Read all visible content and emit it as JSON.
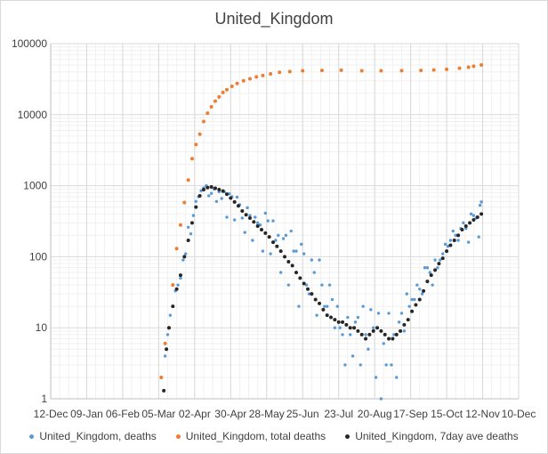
{
  "chart_data": {
    "type": "scatter",
    "title": "United_Kingdom",
    "yscale": "log",
    "ylim": [
      1,
      100000
    ],
    "y_ticks": [
      "1",
      "10",
      "100",
      "1000",
      "10000",
      "100000"
    ],
    "x_range": [
      "2019-12-12",
      "2020-12-10"
    ],
    "x_ticks": [
      "12-Dec",
      "09-Jan",
      "06-Feb",
      "05-Mar",
      "02-Apr",
      "30-Apr",
      "28-May",
      "25-Jun",
      "23-Jul",
      "20-Aug",
      "17-Sep",
      "15-Oct",
      "12-Nov",
      "10-Dec"
    ],
    "grid": true,
    "legend_position": "bottom",
    "series": [
      {
        "name": "United_Kingdom, deaths",
        "color": "#5b9bd5",
        "points": [
          [
            "2020-03-07",
            2
          ],
          [
            "2020-03-10",
            4
          ],
          [
            "2020-03-12",
            8
          ],
          [
            "2020-03-14",
            15
          ],
          [
            "2020-03-16",
            20
          ],
          [
            "2020-03-18",
            33
          ],
          [
            "2020-03-20",
            40
          ],
          [
            "2020-03-22",
            50
          ],
          [
            "2020-03-24",
            90
          ],
          [
            "2020-03-26",
            110
          ],
          [
            "2020-03-28",
            260
          ],
          [
            "2020-03-30",
            210
          ],
          [
            "2020-04-01",
            380
          ],
          [
            "2020-04-03",
            600
          ],
          [
            "2020-04-05",
            700
          ],
          [
            "2020-04-07",
            850
          ],
          [
            "2020-04-09",
            930
          ],
          [
            "2020-04-11",
            1000
          ],
          [
            "2020-04-13",
            720
          ],
          [
            "2020-04-15",
            780
          ],
          [
            "2020-04-17",
            900
          ],
          [
            "2020-04-19",
            600
          ],
          [
            "2020-04-21",
            820
          ],
          [
            "2020-04-23",
            660
          ],
          [
            "2020-04-25",
            820
          ],
          [
            "2020-04-27",
            360
          ],
          [
            "2020-04-29",
            770
          ],
          [
            "2020-05-01",
            700
          ],
          [
            "2020-05-03",
            330
          ],
          [
            "2020-05-05",
            690
          ],
          [
            "2020-05-07",
            540
          ],
          [
            "2020-05-09",
            350
          ],
          [
            "2020-05-11",
            220
          ],
          [
            "2020-05-13",
            490
          ],
          [
            "2020-05-15",
            380
          ],
          [
            "2020-05-17",
            170
          ],
          [
            "2020-05-19",
            360
          ],
          [
            "2020-05-21",
            300
          ],
          [
            "2020-05-23",
            280
          ],
          [
            "2020-05-25",
            120
          ],
          [
            "2020-05-27",
            410
          ],
          [
            "2020-05-29",
            320
          ],
          [
            "2020-05-31",
            110
          ],
          [
            "2020-06-02",
            320
          ],
          [
            "2020-06-04",
            170
          ],
          [
            "2020-06-06",
            200
          ],
          [
            "2020-06-08",
            60
          ],
          [
            "2020-06-10",
            180
          ],
          [
            "2020-06-12",
            200
          ],
          [
            "2020-06-14",
            40
          ],
          [
            "2020-06-16",
            230
          ],
          [
            "2020-06-18",
            120
          ],
          [
            "2020-06-20",
            120
          ],
          [
            "2020-06-22",
            20
          ],
          [
            "2020-06-24",
            150
          ],
          [
            "2020-06-26",
            110
          ],
          [
            "2020-06-28",
            40
          ],
          [
            "2020-06-30",
            30
          ],
          [
            "2020-07-02",
            90
          ],
          [
            "2020-07-04",
            60
          ],
          [
            "2020-07-06",
            15
          ],
          [
            "2020-07-08",
            90
          ],
          [
            "2020-07-10",
            40
          ],
          [
            "2020-07-12",
            20
          ],
          [
            "2020-07-14",
            20
          ],
          [
            "2020-07-16",
            40
          ],
          [
            "2020-07-18",
            25
          ],
          [
            "2020-07-20",
            10
          ],
          [
            "2020-07-22",
            20
          ],
          [
            "2020-07-24",
            10
          ],
          [
            "2020-07-26",
            8
          ],
          [
            "2020-07-28",
            3
          ],
          [
            "2020-07-30",
            14
          ],
          [
            "2020-08-01",
            8
          ],
          [
            "2020-08-03",
            4
          ],
          [
            "2020-08-05",
            12
          ],
          [
            "2020-08-07",
            14
          ],
          [
            "2020-08-09",
            3
          ],
          [
            "2020-08-11",
            20
          ],
          [
            "2020-08-13",
            8
          ],
          [
            "2020-08-15",
            5
          ],
          [
            "2020-08-17",
            18
          ],
          [
            "2020-08-19",
            10
          ],
          [
            "2020-08-21",
            2
          ],
          [
            "2020-08-23",
            16
          ],
          [
            "2020-08-25",
            1
          ],
          [
            "2020-08-27",
            6
          ],
          [
            "2020-08-29",
            3
          ],
          [
            "2020-08-31",
            16
          ],
          [
            "2020-09-02",
            3
          ],
          [
            "2020-09-04",
            8
          ],
          [
            "2020-09-06",
            2
          ],
          [
            "2020-09-08",
            12
          ],
          [
            "2020-09-10",
            16
          ],
          [
            "2020-09-12",
            9
          ],
          [
            "2020-09-14",
            30
          ],
          [
            "2020-09-16",
            20
          ],
          [
            "2020-09-18",
            25
          ],
          [
            "2020-09-20",
            25
          ],
          [
            "2020-09-22",
            40
          ],
          [
            "2020-09-24",
            35
          ],
          [
            "2020-09-26",
            30
          ],
          [
            "2020-09-28",
            70
          ],
          [
            "2020-09-30",
            70
          ],
          [
            "2020-10-02",
            60
          ],
          [
            "2020-10-04",
            40
          ],
          [
            "2020-10-06",
            90
          ],
          [
            "2020-10-08",
            70
          ],
          [
            "2020-10-10",
            90
          ],
          [
            "2020-10-12",
            110
          ],
          [
            "2020-10-14",
            150
          ],
          [
            "2020-10-16",
            140
          ],
          [
            "2020-10-18",
            170
          ],
          [
            "2020-10-20",
            230
          ],
          [
            "2020-10-22",
            200
          ],
          [
            "2020-10-24",
            170
          ],
          [
            "2020-10-26",
            250
          ],
          [
            "2020-10-28",
            300
          ],
          [
            "2020-10-30",
            250
          ],
          [
            "2020-11-01",
            160
          ],
          [
            "2020-11-03",
            400
          ],
          [
            "2020-11-05",
            380
          ],
          [
            "2020-11-07",
            350
          ],
          [
            "2020-11-09",
            190
          ],
          [
            "2020-11-10",
            530
          ],
          [
            "2020-11-11",
            590
          ]
        ]
      },
      {
        "name": "United_Kingdom, total deaths",
        "color": "#ed7d31",
        "points": [
          [
            "2020-03-07",
            2
          ],
          [
            "2020-03-10",
            6
          ],
          [
            "2020-03-13",
            10
          ],
          [
            "2020-03-16",
            40
          ],
          [
            "2020-03-19",
            130
          ],
          [
            "2020-03-22",
            280
          ],
          [
            "2020-03-25",
            580
          ],
          [
            "2020-03-28",
            1200
          ],
          [
            "2020-03-31",
            2400
          ],
          [
            "2020-04-03",
            3800
          ],
          [
            "2020-04-06",
            5300
          ],
          [
            "2020-04-09",
            8000
          ],
          [
            "2020-04-12",
            10500
          ],
          [
            "2020-04-15",
            12900
          ],
          [
            "2020-04-18",
            15500
          ],
          [
            "2020-04-21",
            17800
          ],
          [
            "2020-04-24",
            20500
          ],
          [
            "2020-04-27",
            22500
          ],
          [
            "2020-05-01",
            25000
          ],
          [
            "2020-05-05",
            27500
          ],
          [
            "2020-05-10",
            30000
          ],
          [
            "2020-05-15",
            32000
          ],
          [
            "2020-05-20",
            34000
          ],
          [
            "2020-05-25",
            35500
          ],
          [
            "2020-05-31",
            37500
          ],
          [
            "2020-06-07",
            39500
          ],
          [
            "2020-06-15",
            40500
          ],
          [
            "2020-06-25",
            41500
          ],
          [
            "2020-07-10",
            42000
          ],
          [
            "2020-07-25",
            42200
          ],
          [
            "2020-08-10",
            41500
          ],
          [
            "2020-08-25",
            41500
          ],
          [
            "2020-09-10",
            41600
          ],
          [
            "2020-09-25",
            42000
          ],
          [
            "2020-10-05",
            42500
          ],
          [
            "2020-10-15",
            43500
          ],
          [
            "2020-10-25",
            45000
          ],
          [
            "2020-11-01",
            46500
          ],
          [
            "2020-11-05",
            48000
          ],
          [
            "2020-11-11",
            50000
          ]
        ]
      },
      {
        "name": "United_Kingdom, 7day ave deaths",
        "color": "#262626",
        "points": [
          [
            "2020-03-09",
            1.3
          ],
          [
            "2020-03-11",
            5
          ],
          [
            "2020-03-13",
            10
          ],
          [
            "2020-03-16",
            20
          ],
          [
            "2020-03-19",
            35
          ],
          [
            "2020-03-22",
            55
          ],
          [
            "2020-03-25",
            100
          ],
          [
            "2020-03-28",
            170
          ],
          [
            "2020-03-31",
            300
          ],
          [
            "2020-04-03",
            500
          ],
          [
            "2020-04-06",
            720
          ],
          [
            "2020-04-09",
            880
          ],
          [
            "2020-04-12",
            940
          ],
          [
            "2020-04-15",
            960
          ],
          [
            "2020-04-18",
            920
          ],
          [
            "2020-04-21",
            880
          ],
          [
            "2020-04-24",
            840
          ],
          [
            "2020-04-27",
            760
          ],
          [
            "2020-04-30",
            670
          ],
          [
            "2020-05-03",
            590
          ],
          [
            "2020-05-06",
            520
          ],
          [
            "2020-05-09",
            440
          ],
          [
            "2020-05-12",
            390
          ],
          [
            "2020-05-15",
            350
          ],
          [
            "2020-05-18",
            310
          ],
          [
            "2020-05-21",
            270
          ],
          [
            "2020-05-24",
            240
          ],
          [
            "2020-05-27",
            215
          ],
          [
            "2020-05-30",
            190
          ],
          [
            "2020-06-02",
            160
          ],
          [
            "2020-06-05",
            140
          ],
          [
            "2020-06-08",
            120
          ],
          [
            "2020-06-11",
            100
          ],
          [
            "2020-06-14",
            85
          ],
          [
            "2020-06-17",
            75
          ],
          [
            "2020-06-20",
            60
          ],
          [
            "2020-06-23",
            50
          ],
          [
            "2020-06-26",
            42
          ],
          [
            "2020-06-29",
            35
          ],
          [
            "2020-07-02",
            30
          ],
          [
            "2020-07-05",
            25
          ],
          [
            "2020-07-08",
            22
          ],
          [
            "2020-07-11",
            18
          ],
          [
            "2020-07-14",
            15
          ],
          [
            "2020-07-17",
            14
          ],
          [
            "2020-07-20",
            13
          ],
          [
            "2020-07-23",
            12
          ],
          [
            "2020-07-26",
            12
          ],
          [
            "2020-07-29",
            11
          ],
          [
            "2020-08-01",
            10
          ],
          [
            "2020-08-04",
            10
          ],
          [
            "2020-08-07",
            9
          ],
          [
            "2020-08-10",
            8
          ],
          [
            "2020-08-13",
            7
          ],
          [
            "2020-08-16",
            8
          ],
          [
            "2020-08-19",
            9
          ],
          [
            "2020-08-22",
            10
          ],
          [
            "2020-08-25",
            9
          ],
          [
            "2020-08-28",
            8
          ],
          [
            "2020-08-31",
            7
          ],
          [
            "2020-09-03",
            7
          ],
          [
            "2020-09-06",
            8
          ],
          [
            "2020-09-09",
            9
          ],
          [
            "2020-09-12",
            11
          ],
          [
            "2020-09-15",
            13
          ],
          [
            "2020-09-18",
            17
          ],
          [
            "2020-09-21",
            21
          ],
          [
            "2020-09-24",
            25
          ],
          [
            "2020-09-27",
            33
          ],
          [
            "2020-09-30",
            45
          ],
          [
            "2020-10-03",
            55
          ],
          [
            "2020-10-06",
            65
          ],
          [
            "2020-10-09",
            80
          ],
          [
            "2020-10-12",
            95
          ],
          [
            "2020-10-15",
            120
          ],
          [
            "2020-10-18",
            145
          ],
          [
            "2020-10-21",
            170
          ],
          [
            "2020-10-24",
            200
          ],
          [
            "2020-10-27",
            240
          ],
          [
            "2020-10-30",
            270
          ],
          [
            "2020-11-02",
            300
          ],
          [
            "2020-11-05",
            330
          ],
          [
            "2020-11-08",
            360
          ],
          [
            "2020-11-11",
            400
          ]
        ]
      }
    ]
  }
}
